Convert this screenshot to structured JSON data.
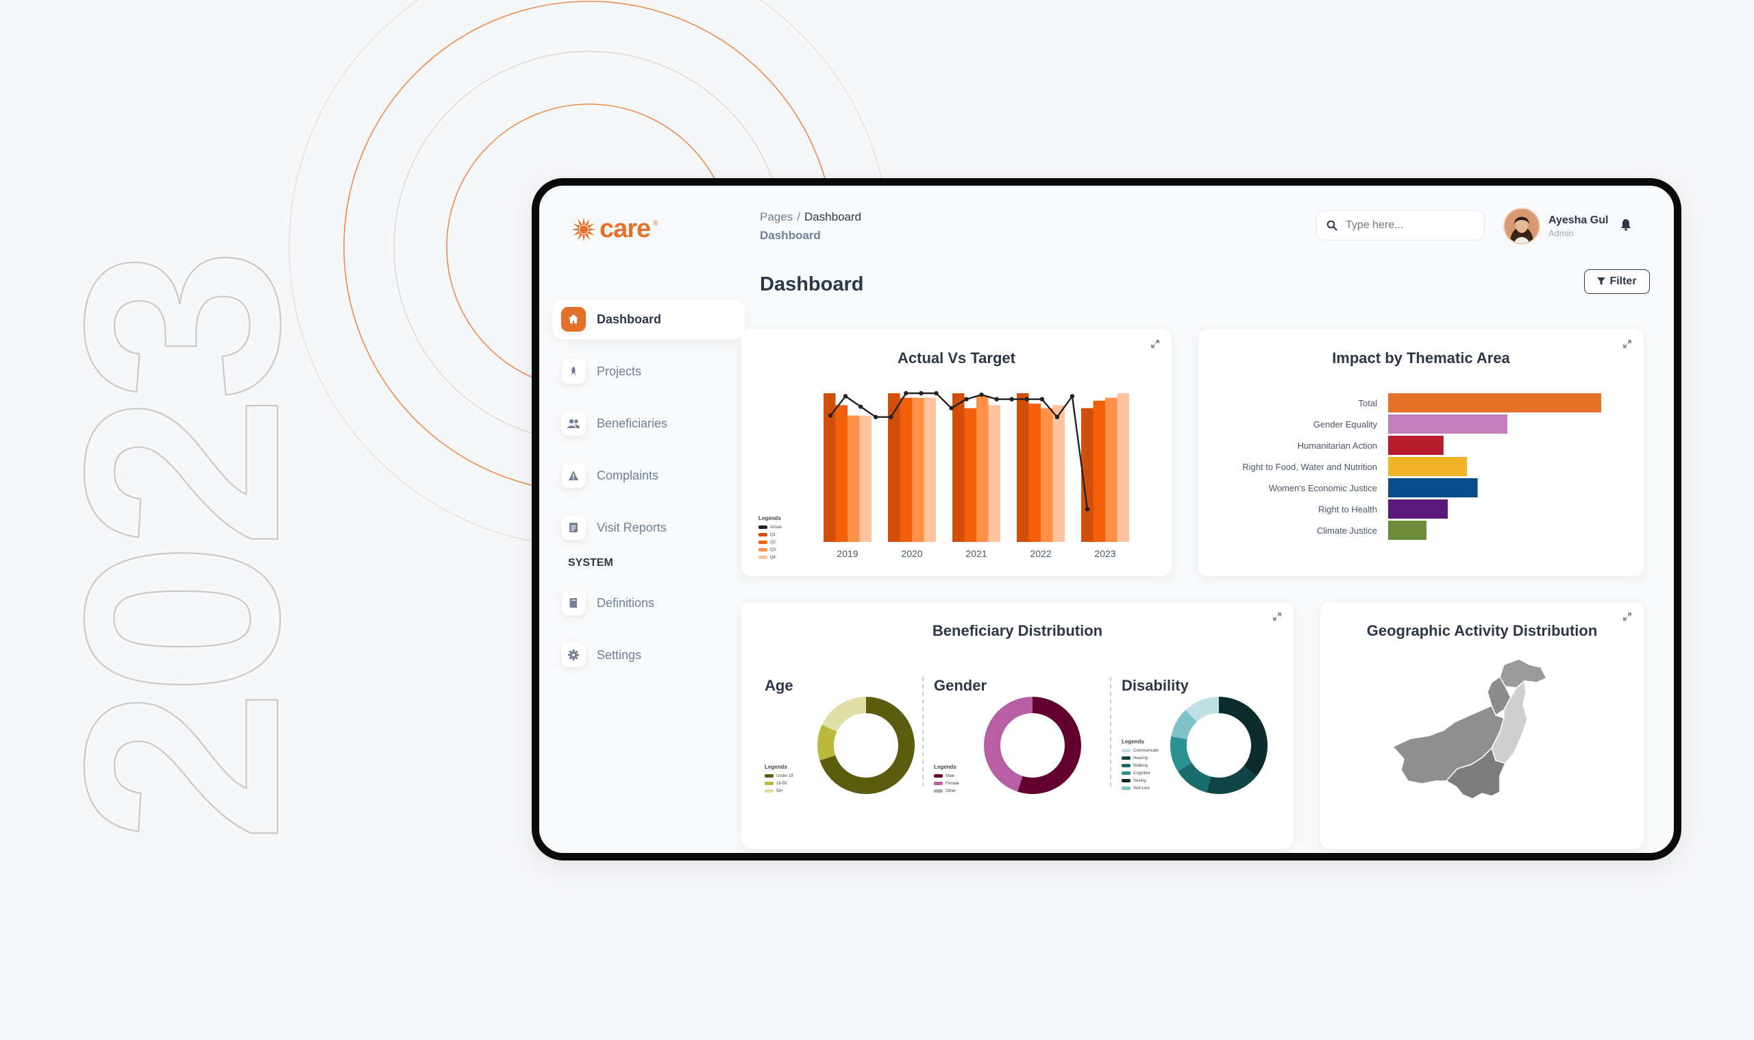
{
  "background": {
    "year_text": "2023",
    "accent_color": "#f08a4b"
  },
  "brand": {
    "name": "care",
    "sup": "®",
    "color": "#e4712a"
  },
  "sidebar": {
    "items": [
      {
        "label": "Dashboard",
        "icon": "home-icon",
        "active": true
      },
      {
        "label": "Projects",
        "icon": "rocket-icon"
      },
      {
        "label": "Beneficiaries",
        "icon": "users-icon"
      },
      {
        "label": "Complaints",
        "icon": "warning-icon"
      },
      {
        "label": "Visit Reports",
        "icon": "report-icon"
      }
    ],
    "section_label": "SYSTEM",
    "system_items": [
      {
        "label": "Definitions",
        "icon": "book-icon"
      },
      {
        "label": "Settings",
        "icon": "gear-icon"
      }
    ]
  },
  "header": {
    "breadcrumb_root": "Pages",
    "breadcrumb_sep": "/",
    "breadcrumb_current": "Dashboard",
    "breadcrumb_title": "Dashboard",
    "page_title": "Dashboard",
    "search_placeholder": "Type here...",
    "user_name": "Ayesha Gul",
    "user_role": "Admin",
    "filter_label": "Filter"
  },
  "cards": {
    "actual_vs_target": "Actual Vs Target",
    "impact": "Impact by Thematic Area",
    "beneficiary": "Beneficiary Distribution",
    "geo": "Geographic Activity Distribution",
    "age": "Age",
    "gender": "Gender",
    "disability": "Disability",
    "legends_label": "Legends"
  },
  "chart_data": [
    {
      "type": "bar",
      "title": "Actual Vs Target",
      "categories": [
        "2019",
        "2020",
        "2021",
        "2022",
        "2023"
      ],
      "ylim": [
        0,
        100
      ],
      "series": [
        {
          "name": "Q1",
          "values": [
            100,
            100,
            100,
            100,
            90
          ],
          "color": "#d24f0a"
        },
        {
          "name": "Q2",
          "values": [
            92,
            97,
            90,
            93,
            95
          ],
          "color": "#f4600a"
        },
        {
          "name": "Q3",
          "values": [
            85,
            97,
            98,
            90,
            97
          ],
          "color": "#ff9148"
        },
        {
          "name": "Q4",
          "values": [
            85,
            97,
            92,
            92,
            100
          ],
          "color": "#ffc3a0"
        }
      ],
      "line": {
        "name": "Actual",
        "color": "#222222",
        "values": [
          85,
          98,
          91,
          84,
          84,
          100,
          100,
          100,
          90,
          96,
          99,
          96,
          96,
          96,
          96,
          84,
          98,
          22
        ]
      },
      "legend": [
        "Actual",
        "Q1",
        "Q2",
        "Q3",
        "Q4"
      ]
    },
    {
      "type": "bar",
      "title": "Impact by Thematic Area",
      "orientation": "horizontal",
      "categories": [
        "Total",
        "Gender Equality",
        "Humanitarian Action",
        "Right to Food, Water and Nutrition",
        "Women's Economic Justice",
        "Right to Health",
        "Climate Justice"
      ],
      "values": [
        100,
        56,
        26,
        37,
        42,
        28,
        18
      ],
      "colors": [
        "#e4712a",
        "#c27fbd",
        "#b71c2c",
        "#f0b429",
        "#0a4d8c",
        "#5a1a7a",
        "#6d8b3a"
      ]
    },
    {
      "type": "pie",
      "title": "Age",
      "labels": [
        "Under 18",
        "18-59",
        "59+"
      ],
      "values": [
        70,
        12,
        18
      ],
      "colors": [
        "#5c5c0e",
        "#b9b93c",
        "#e0e0a6"
      ]
    },
    {
      "type": "pie",
      "title": "Gender",
      "labels": [
        "Male",
        "Female",
        "Other"
      ],
      "values": [
        55,
        45,
        0
      ],
      "colors": [
        "#63002f",
        "#b85ea3",
        "#b0b0b0"
      ]
    },
    {
      "type": "pie",
      "title": "Disability",
      "labels": [
        "Seeing",
        "Hearing",
        "Walking",
        "Cognitive",
        "Self-care",
        "Communicate"
      ],
      "values": [
        36,
        18,
        12,
        12,
        10,
        12
      ],
      "colors": [
        "#0c2b2b",
        "#114444",
        "#1a6b6b",
        "#2a9090",
        "#7fc3c8",
        "#bfe0e4"
      ]
    }
  ],
  "legends": {
    "actual": [
      "Actual",
      "Q1",
      "Q2",
      "Q3",
      "Q4"
    ],
    "age": [
      "Under 18",
      "18-59",
      "59+"
    ],
    "gender": [
      "Male",
      "Female",
      "Other"
    ],
    "disability": [
      "Communicate",
      "Hearing",
      "Walking",
      "Cognitive",
      "Seeing",
      "Self-care"
    ]
  }
}
